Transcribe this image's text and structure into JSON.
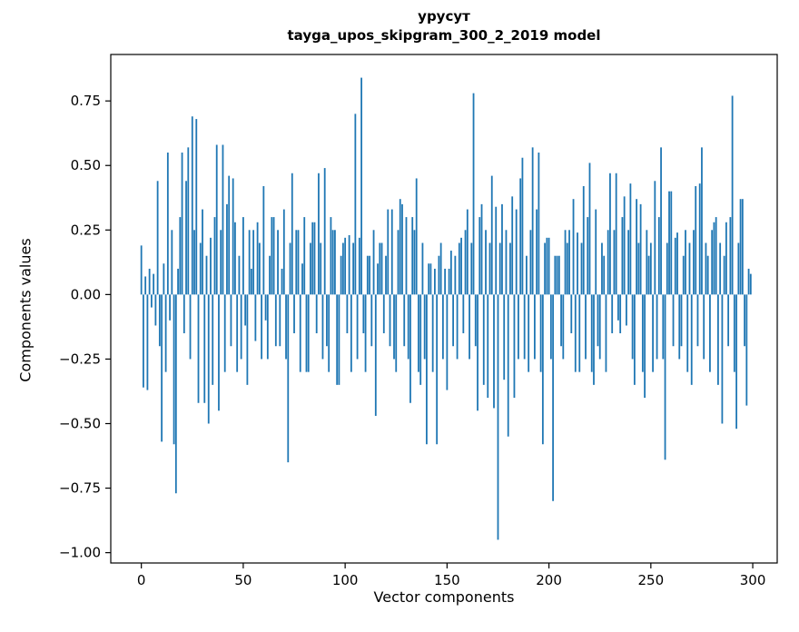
{
  "chart_data": {
    "type": "bar",
    "title_line1": "урусут",
    "title_line2": "tayga_upos_skipgram_300_2_2019 model",
    "xlabel": "Vector components",
    "ylabel": "Components values",
    "bar_color": "#1f77b4",
    "axis_color": "#000000",
    "xlim": [
      -15,
      312
    ],
    "ylim": [
      -1.04,
      0.93
    ],
    "xtick_values": [
      0,
      50,
      100,
      150,
      200,
      250,
      300
    ],
    "xtick_labels": [
      "0",
      "50",
      "100",
      "150",
      "200",
      "250",
      "300"
    ],
    "ytick_values": [
      0.75,
      0.5,
      0.25,
      0,
      -0.25,
      -0.5,
      -0.75,
      -1.0
    ],
    "ytick_labels": [
      "0.75",
      "0.50",
      "0.25",
      "0.00",
      "−0.25",
      "−0.50",
      "−0.75",
      "−1.00"
    ],
    "values": [
      0.19,
      -0.36,
      0.07,
      -0.37,
      0.1,
      -0.05,
      0.08,
      -0.12,
      0.44,
      -0.2,
      -0.57,
      0.12,
      -0.3,
      0.55,
      -0.1,
      0.25,
      -0.58,
      -0.77,
      0.1,
      0.3,
      0.55,
      -0.15,
      0.44,
      0.57,
      -0.25,
      0.69,
      0.25,
      0.68,
      -0.42,
      0.2,
      0.33,
      -0.42,
      0.15,
      -0.5,
      0.22,
      -0.35,
      0.3,
      0.58,
      -0.45,
      0.25,
      0.58,
      -0.3,
      0.35,
      0.46,
      -0.2,
      0.45,
      0.28,
      -0.3,
      0.15,
      -0.25,
      0.3,
      -0.12,
      -0.35,
      0.25,
      0.1,
      0.25,
      -0.18,
      0.28,
      0.2,
      -0.25,
      0.42,
      -0.1,
      -0.25,
      0.15,
      0.3,
      0.3,
      -0.2,
      0.25,
      -0.2,
      0.1,
      0.33,
      -0.25,
      -0.65,
      0.2,
      0.47,
      -0.15,
      0.25,
      0.25,
      -0.3,
      0.12,
      0.3,
      -0.3,
      -0.3,
      0.2,
      0.28,
      0.28,
      -0.15,
      0.47,
      0.2,
      -0.25,
      0.49,
      -0.2,
      -0.3,
      0.3,
      0.25,
      0.25,
      -0.35,
      -0.35,
      0.15,
      0.2,
      0.22,
      -0.15,
      0.23,
      -0.3,
      0.2,
      0.7,
      -0.25,
      0.22,
      0.84,
      -0.15,
      -0.3,
      0.15,
      0.15,
      -0.2,
      0.25,
      -0.47,
      0.12,
      0.2,
      0.2,
      -0.15,
      0.15,
      0.33,
      -0.2,
      0.33,
      -0.25,
      -0.3,
      0.25,
      0.37,
      0.35,
      -0.2,
      0.3,
      -0.25,
      -0.42,
      0.3,
      0.25,
      0.45,
      -0.3,
      -0.35,
      0.2,
      -0.25,
      -0.58,
      0.12,
      0.12,
      -0.3,
      0.1,
      -0.58,
      0.15,
      0.2,
      -0.25,
      0.1,
      -0.37,
      0.1,
      0.17,
      -0.2,
      0.15,
      -0.25,
      0.2,
      0.22,
      -0.15,
      0.25,
      0.33,
      -0.25,
      0.2,
      0.78,
      -0.2,
      -0.45,
      0.3,
      0.35,
      -0.35,
      0.25,
      -0.4,
      0.2,
      0.46,
      -0.44,
      0.34,
      -0.95,
      0.2,
      0.35,
      -0.33,
      0.25,
      -0.55,
      0.2,
      0.38,
      -0.4,
      0.33,
      -0.25,
      0.45,
      0.53,
      -0.25,
      0.15,
      -0.3,
      0.25,
      0.57,
      -0.25,
      0.33,
      0.55,
      -0.3,
      -0.58,
      0.2,
      0.22,
      0.22,
      -0.25,
      -0.8,
      0.15,
      0.15,
      0.15,
      -0.2,
      -0.25,
      0.25,
      0.2,
      0.25,
      -0.15,
      0.37,
      -0.3,
      0.24,
      -0.3,
      0.2,
      0.42,
      -0.25,
      0.3,
      0.51,
      -0.3,
      -0.35,
      0.33,
      -0.2,
      -0.25,
      0.2,
      0.15,
      -0.3,
      0.25,
      0.47,
      -0.15,
      0.25,
      0.47,
      -0.1,
      -0.15,
      0.3,
      0.38,
      -0.12,
      0.25,
      0.43,
      -0.25,
      -0.35,
      0.37,
      0.2,
      0.35,
      -0.3,
      -0.4,
      0.25,
      0.15,
      0.2,
      -0.3,
      0.44,
      -0.25,
      0.3,
      0.57,
      -0.25,
      -0.64,
      0.2,
      0.4,
      0.4,
      -0.2,
      0.22,
      0.24,
      -0.25,
      -0.2,
      0.15,
      0.25,
      -0.3,
      0.2,
      -0.35,
      0.25,
      0.42,
      -0.2,
      0.43,
      0.57,
      -0.25,
      0.2,
      0.15,
      -0.3,
      0.25,
      0.28,
      0.3,
      -0.35,
      0.2,
      -0.5,
      0.15,
      0.28,
      -0.2,
      0.3,
      0.77,
      -0.3,
      -0.52,
      0.2,
      0.37,
      0.37,
      -0.2,
      -0.43,
      0.1,
      0.08
    ]
  }
}
